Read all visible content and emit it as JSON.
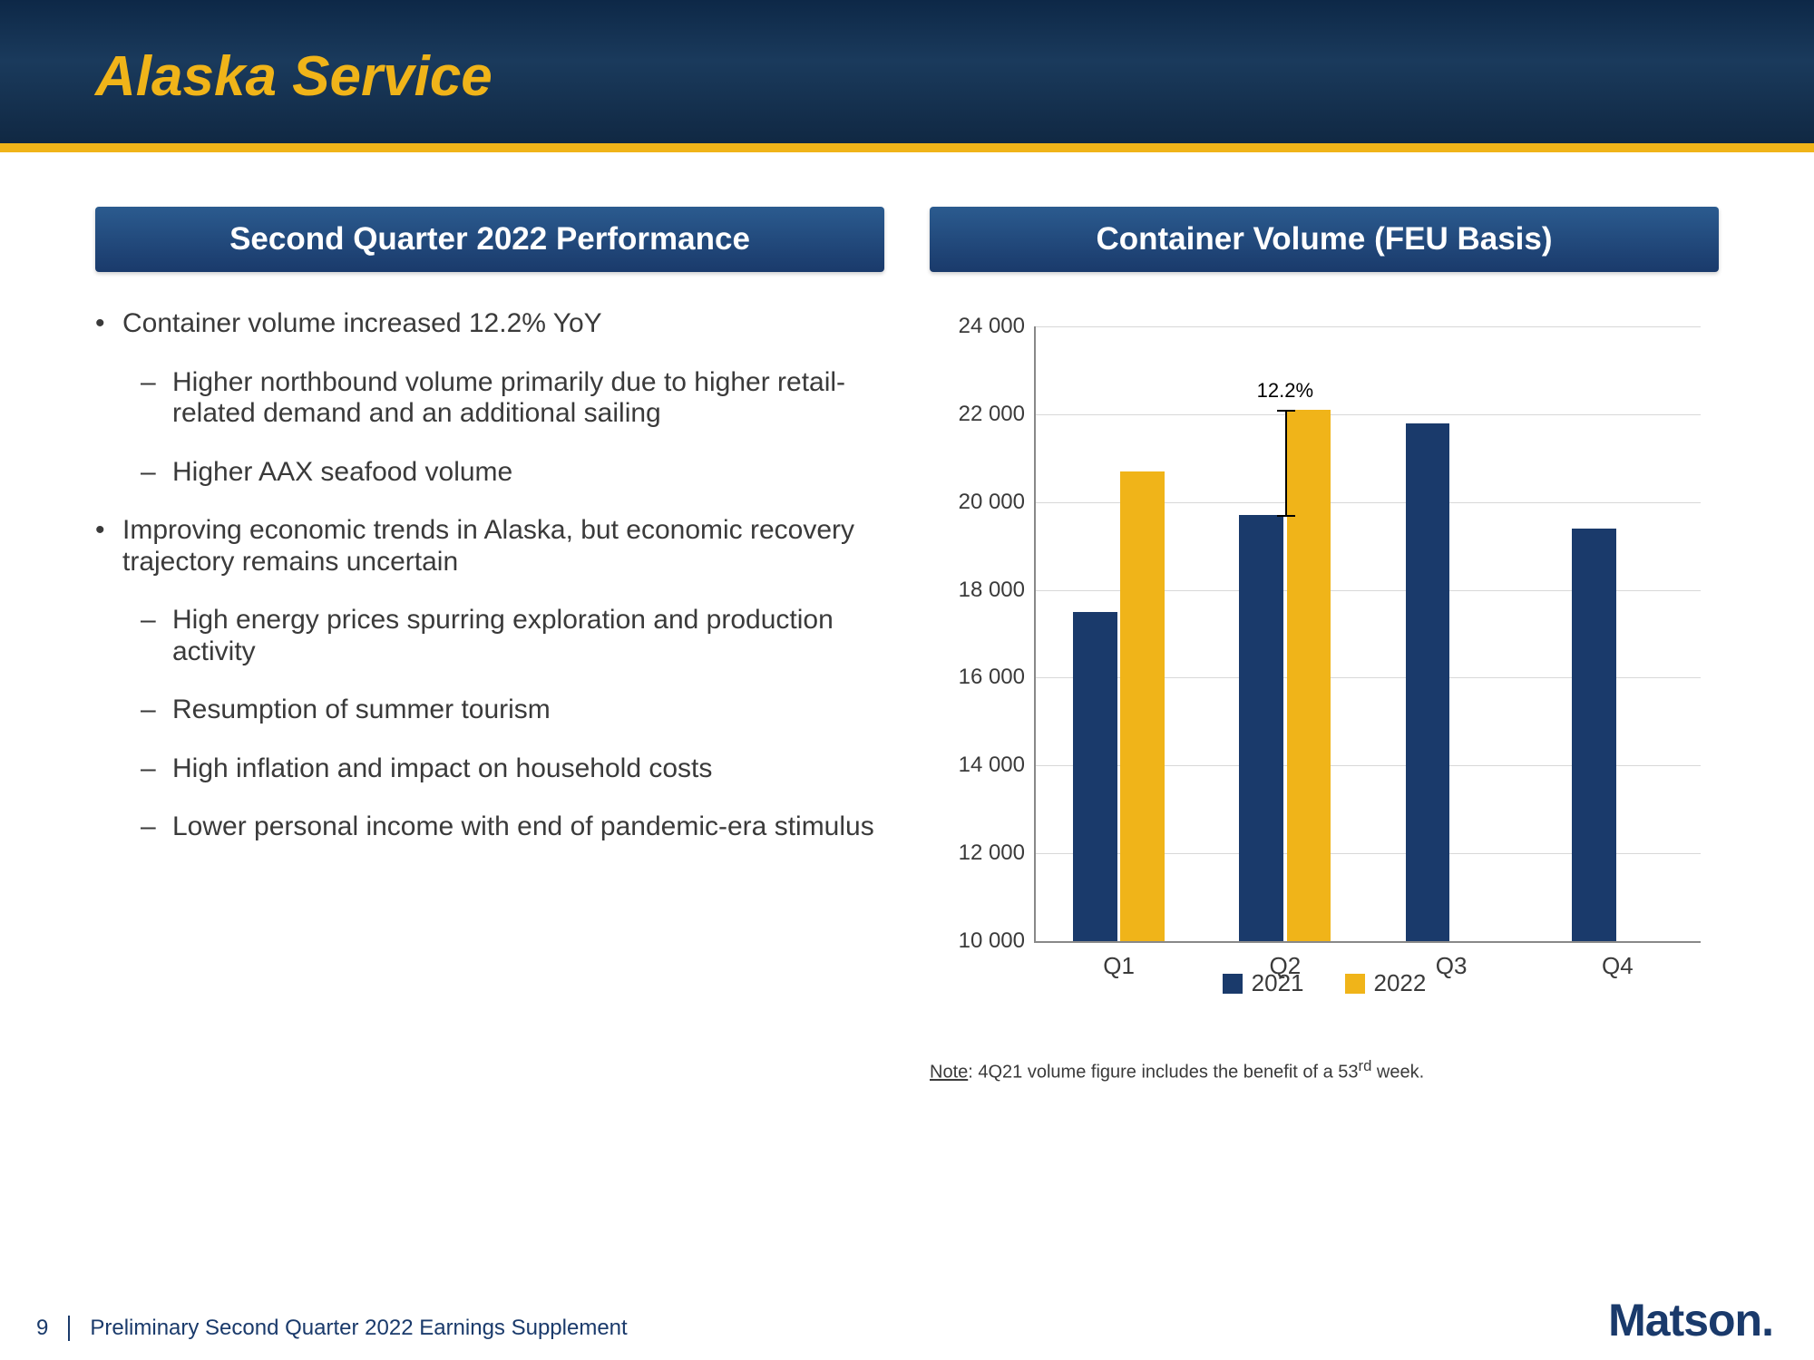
{
  "slide": {
    "title": "Alaska Service",
    "accent_color": "#f0b419",
    "header_bg": "#1a3a5c"
  },
  "left_panel": {
    "header": "Second Quarter 2022 Performance",
    "bullets": [
      {
        "text": "Container volume increased 12.2% YoY",
        "sub": [
          "Higher northbound volume primarily due to higher retail-related demand and an additional sailing",
          "Higher AAX seafood volume"
        ]
      },
      {
        "text": "Improving economic trends in Alaska, but economic recovery trajectory remains uncertain",
        "sub": [
          "High energy prices spurring exploration and production activity",
          "Resumption of summer tourism",
          "High inflation and impact on household costs",
          "Lower personal income with end of pandemic-era stimulus"
        ]
      }
    ]
  },
  "right_panel": {
    "header": "Container Volume (FEU Basis)"
  },
  "chart": {
    "type": "bar",
    "categories": [
      "Q1",
      "Q2",
      "Q3",
      "Q4"
    ],
    "series": [
      {
        "name": "2021",
        "color": "#1a3a6b",
        "values": [
          17500,
          19700,
          21800,
          19400
        ]
      },
      {
        "name": "2022",
        "color": "#f0b419",
        "values": [
          20700,
          22100,
          null,
          null
        ]
      }
    ],
    "ylim": [
      10000,
      24000
    ],
    "ytick_step": 2000,
    "yticks": [
      "10 000",
      "12 000",
      "14 000",
      "16 000",
      "18 000",
      "20 000",
      "22 000",
      "24 000"
    ],
    "grid_color": "#d8d8d8",
    "axis_color": "#888888",
    "bar_group_width": 0.55,
    "bar_gap": 0.02,
    "annotation": {
      "label": "12.2%",
      "from_series": 0,
      "to_series": 1,
      "category_index": 1
    },
    "label_fontsize": 24
  },
  "note": {
    "label": "Note",
    "text": "4Q21 volume figure includes the benefit of a 53",
    "suffix_super": "rd",
    "tail": " week."
  },
  "footer": {
    "page": "9",
    "text": "Preliminary Second Quarter 2022 Earnings Supplement",
    "logo": "Matson"
  }
}
